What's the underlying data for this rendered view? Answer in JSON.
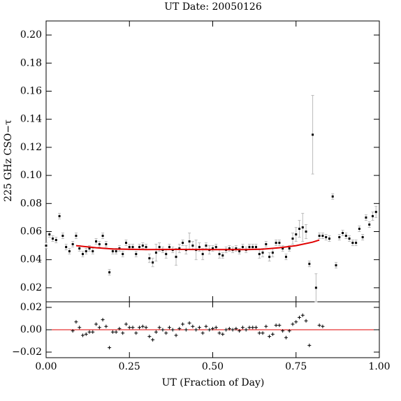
{
  "chart_data": [
    {
      "type": "errorbar",
      "title": "UT Date: 20050126",
      "ylabel": "225 GHz CSO−τ",
      "ylim": [
        0.01,
        0.21
      ],
      "yticks": [
        0.02,
        0.04,
        0.06,
        0.08,
        {
          "value": 0.1,
          "label": "0.10"
        },
        0.12,
        0.14,
        0.16,
        0.18,
        {
          "value": 0.2,
          "label": "0.20"
        }
      ],
      "color": "#000000",
      "error_color": "#bbbbbb",
      "x": [
        0.0,
        0.01,
        0.02,
        0.03,
        0.04,
        0.05,
        0.06,
        0.07,
        0.08,
        0.09,
        0.1,
        0.11,
        0.12,
        0.13,
        0.14,
        0.15,
        0.16,
        0.17,
        0.18,
        0.19,
        0.2,
        0.21,
        0.22,
        0.23,
        0.24,
        0.25,
        0.26,
        0.27,
        0.28,
        0.29,
        0.3,
        0.31,
        0.32,
        0.33,
        0.34,
        0.35,
        0.36,
        0.37,
        0.38,
        0.39,
        0.4,
        0.41,
        0.42,
        0.43,
        0.44,
        0.45,
        0.46,
        0.47,
        0.48,
        0.49,
        0.5,
        0.51,
        0.52,
        0.53,
        0.54,
        0.55,
        0.56,
        0.57,
        0.58,
        0.59,
        0.6,
        0.61,
        0.62,
        0.63,
        0.64,
        0.65,
        0.66,
        0.67,
        0.68,
        0.69,
        0.7,
        0.71,
        0.72,
        0.73,
        0.74,
        0.75,
        0.76,
        0.77,
        0.78,
        0.79,
        0.8,
        0.81,
        0.82,
        0.83,
        0.84,
        0.85,
        0.86,
        0.87,
        0.88,
        0.89,
        0.9,
        0.91,
        0.92,
        0.93,
        0.94,
        0.95,
        0.96,
        0.97,
        0.98,
        0.99
      ],
      "values": [
        0.05,
        0.058,
        0.055,
        0.054,
        0.071,
        0.057,
        0.049,
        0.046,
        0.051,
        0.057,
        0.048,
        0.044,
        0.046,
        0.048,
        0.046,
        0.053,
        0.051,
        0.057,
        0.051,
        0.031,
        0.046,
        0.046,
        0.048,
        0.044,
        0.052,
        0.049,
        0.049,
        0.044,
        0.049,
        0.05,
        0.049,
        0.041,
        0.038,
        0.045,
        0.049,
        0.047,
        0.044,
        0.049,
        0.047,
        0.042,
        0.048,
        0.052,
        0.047,
        0.053,
        0.05,
        0.047,
        0.049,
        0.044,
        0.05,
        0.047,
        0.048,
        0.049,
        0.044,
        0.043,
        0.047,
        0.048,
        0.047,
        0.048,
        0.046,
        0.049,
        0.047,
        0.049,
        0.049,
        0.049,
        0.044,
        0.045,
        0.051,
        0.042,
        0.045,
        0.052,
        0.052,
        0.048,
        0.042,
        0.048,
        0.055,
        0.058,
        0.062,
        0.063,
        0.06,
        0.037,
        0.129,
        0.02,
        0.057,
        0.057,
        0.056,
        0.055,
        0.085,
        0.036,
        0.056,
        0.059,
        0.057,
        0.055,
        0.052,
        0.052,
        0.062,
        0.056,
        0.07,
        0.065,
        0.071,
        0.074
      ],
      "errors": [
        0.002,
        0.002,
        0.002,
        0.002,
        0.002,
        0.002,
        0.002,
        0.002,
        0.002,
        0.002,
        0.002,
        0.002,
        0.002,
        0.002,
        0.002,
        0.002,
        0.002,
        0.002,
        0.002,
        0.002,
        0.002,
        0.002,
        0.002,
        0.002,
        0.002,
        0.002,
        0.002,
        0.002,
        0.002,
        0.002,
        0.002,
        0.003,
        0.003,
        0.006,
        0.003,
        0.002,
        0.003,
        0.002,
        0.002,
        0.006,
        0.003,
        0.002,
        0.003,
        0.006,
        0.003,
        0.007,
        0.003,
        0.004,
        0.002,
        0.003,
        0.002,
        0.002,
        0.003,
        0.002,
        0.002,
        0.002,
        0.002,
        0.002,
        0.002,
        0.002,
        0.002,
        0.002,
        0.002,
        0.002,
        0.003,
        0.003,
        0.002,
        0.003,
        0.003,
        0.002,
        0.002,
        0.002,
        0.002,
        0.002,
        0.004,
        0.005,
        0.006,
        0.01,
        0.005,
        0.002,
        0.028,
        0.01,
        0.002,
        0.002,
        0.002,
        0.002,
        0.002,
        0.002,
        0.002,
        0.002,
        0.002,
        0.002,
        0.002,
        0.002,
        0.002,
        0.002,
        0.002,
        0.002,
        0.003,
        0.004
      ],
      "fit": {
        "color": "#e00000",
        "x": [
          0.09,
          0.15,
          0.2,
          0.3,
          0.4,
          0.5,
          0.6,
          0.65,
          0.7,
          0.75,
          0.8,
          0.82
        ],
        "values": [
          0.05,
          0.0485,
          0.0476,
          0.0472,
          0.0473,
          0.0472,
          0.0472,
          0.0475,
          0.0485,
          0.05,
          0.0525,
          0.054
        ]
      }
    },
    {
      "type": "residual",
      "xlabel": "UT (Fraction of Day)",
      "xlim": [
        0,
        1
      ],
      "xticks": [
        {
          "value": 0,
          "label": "0.00"
        },
        0.25,
        {
          "value": 0.5,
          "label": "0.50"
        },
        0.75,
        {
          "value": 1,
          "label": "1.00"
        }
      ],
      "ylim": [
        -0.025,
        0.025
      ],
      "yticks": [
        {
          "value": -0.02,
          "label": "−0.02"
        },
        {
          "value": 0,
          "label": "0.00"
        },
        0.02
      ],
      "zero_line": 0,
      "zero_color": "#e00000",
      "color": "#000000",
      "x": [
        0.08,
        0.09,
        0.1,
        0.11,
        0.12,
        0.13,
        0.14,
        0.15,
        0.16,
        0.17,
        0.18,
        0.19,
        0.2,
        0.21,
        0.22,
        0.23,
        0.24,
        0.25,
        0.26,
        0.27,
        0.28,
        0.29,
        0.3,
        0.31,
        0.32,
        0.33,
        0.34,
        0.35,
        0.36,
        0.37,
        0.38,
        0.39,
        0.4,
        0.41,
        0.42,
        0.43,
        0.44,
        0.45,
        0.46,
        0.47,
        0.48,
        0.49,
        0.5,
        0.51,
        0.52,
        0.53,
        0.54,
        0.55,
        0.56,
        0.57,
        0.58,
        0.59,
        0.6,
        0.61,
        0.62,
        0.63,
        0.64,
        0.65,
        0.66,
        0.67,
        0.68,
        0.69,
        0.7,
        0.71,
        0.72,
        0.73,
        0.74,
        0.75,
        0.76,
        0.77,
        0.78,
        0.79,
        0.82,
        0.83
      ],
      "values": [
        -0.001,
        0.007,
        0.002,
        -0.005,
        -0.004,
        -0.002,
        -0.002,
        0.005,
        0.002,
        0.009,
        0.003,
        -0.016,
        -0.002,
        -0.002,
        0.001,
        -0.003,
        0.005,
        0.002,
        0.002,
        -0.003,
        0.002,
        0.003,
        0.002,
        -0.006,
        -0.009,
        -0.002,
        0.002,
        0,
        -0.003,
        0.002,
        0,
        -0.005,
        0.001,
        0.005,
        0,
        0.006,
        0.003,
        0,
        0.002,
        -0.003,
        0.003,
        0,
        0.001,
        0.002,
        -0.003,
        -0.004,
        0,
        0.001,
        0,
        0.001,
        -0.001,
        0.002,
        0,
        0.002,
        0.002,
        0.002,
        -0.003,
        -0.003,
        0.003,
        -0.006,
        -0.004,
        0.004,
        0.004,
        -0.001,
        -0.007,
        -0.001,
        0.005,
        0.007,
        0.011,
        0.013,
        0.008,
        -0.014,
        0.004,
        0.003
      ]
    }
  ]
}
